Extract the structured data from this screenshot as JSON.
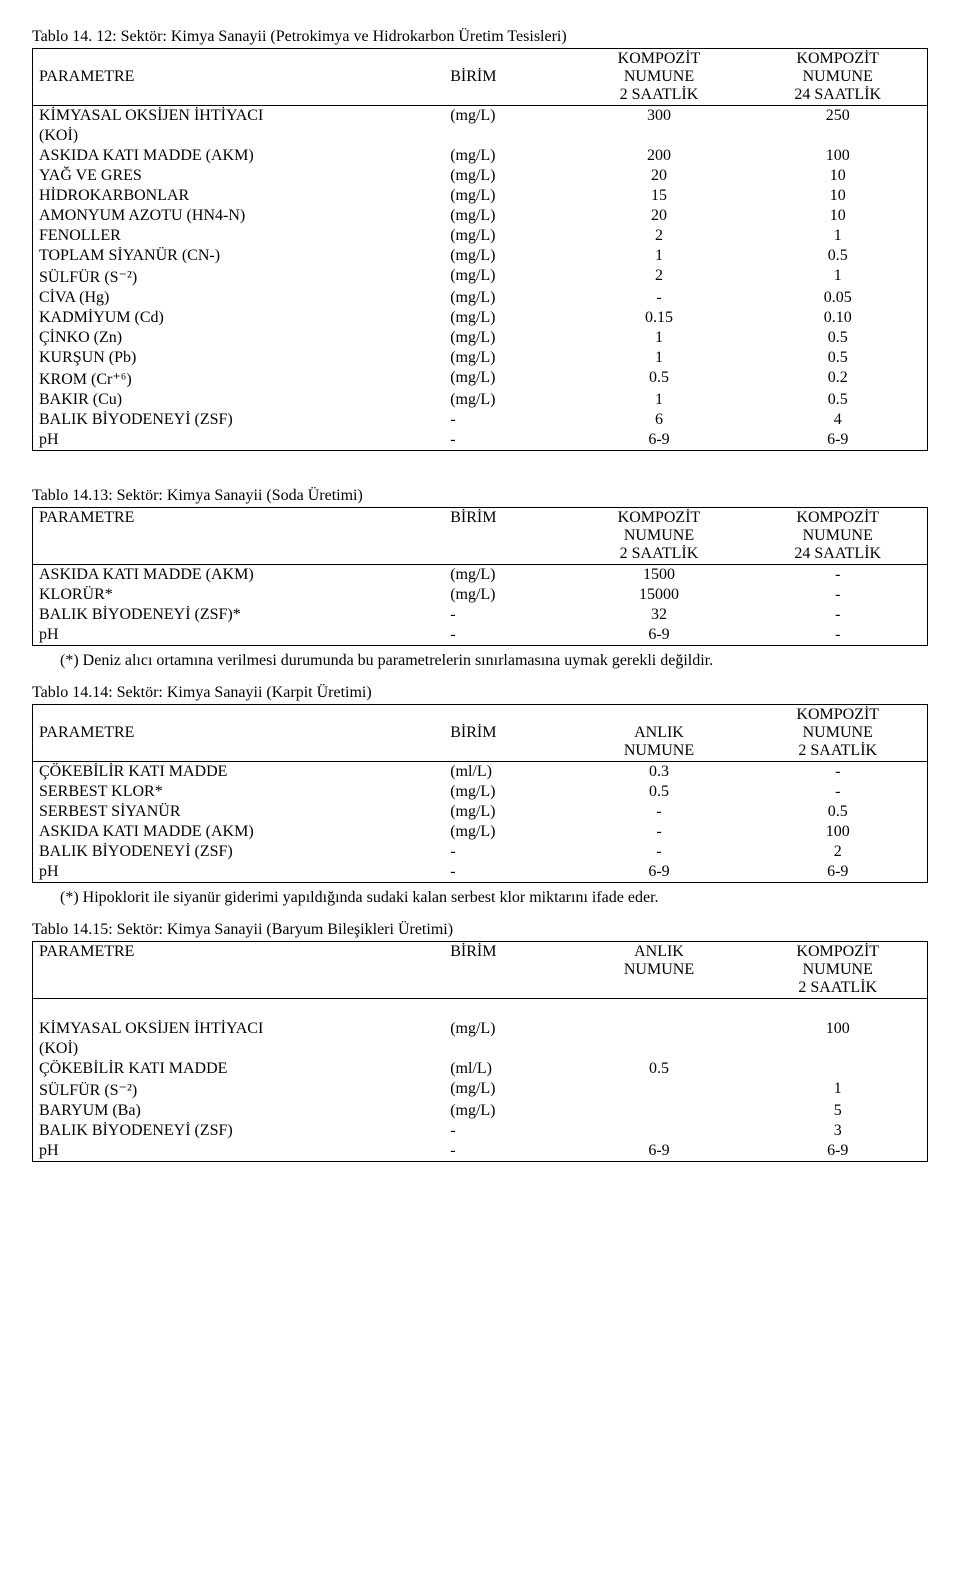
{
  "t12": {
    "caption": "Tablo 14. 12: Sektör: Kimya Sanayii  (Petrokimya  ve  Hidrokarbon Üretim Tesisleri)",
    "h_param": "PARAMETRE",
    "h_unit": "BİRİM",
    "h_c1a": "KOMPOZİT",
    "h_c1b": "NUMUNE",
    "h_c1c": "2 SAATLİK",
    "h_c2a": "KOMPOZİT",
    "h_c2b": "NUMUNE",
    "h_c2c": "24 SAATLİK",
    "rows": [
      {
        "p": "KİMYASAL   OKSİJEN    İHTİYACI",
        "u": "(mg/L)",
        "v1": "300",
        "v2": "250"
      },
      {
        "p": "(KOİ)",
        "u": "",
        "v1": "",
        "v2": ""
      },
      {
        "p": "ASKIDA KATI MADDE (AKM)",
        "u": "(mg/L)",
        "v1": "200",
        "v2": "100"
      },
      {
        "p": "YAĞ VE GRES",
        "u": "(mg/L)",
        "v1": "20",
        "v2": "10"
      },
      {
        "p": "HİDROKARBONLAR",
        "u": "(mg/L)",
        "v1": "15",
        "v2": "10"
      },
      {
        "p": "AMONYUM AZOTU (HN4-N)",
        "u": "(mg/L)",
        "v1": "20",
        "v2": "10"
      },
      {
        "p": "FENOLLER",
        "u": "(mg/L)",
        "v1": "2",
        "v2": "1"
      },
      {
        "p": "TOPLAM SİYANÜR (CN-)",
        "u": "(mg/L)",
        "v1": "1",
        "v2": "0.5"
      },
      {
        "p": "SÜLFÜR (S⁻²)",
        "u": "(mg/L)",
        "v1": "2",
        "v2": "1"
      },
      {
        "p": "CİVA (Hg)",
        "u": "(mg/L)",
        "v1": "-",
        "v2": "0.05"
      },
      {
        "p": "KADMİYUM (Cd)",
        "u": "(mg/L)",
        "v1": "0.15",
        "v2": "0.10"
      },
      {
        "p": "ÇİNKO (Zn)",
        "u": "(mg/L)",
        "v1": "1",
        "v2": "0.5"
      },
      {
        "p": "KURŞUN (Pb)",
        "u": "(mg/L)",
        "v1": "1",
        "v2": "0.5"
      },
      {
        "p": "KROM (Cr⁺⁶)",
        "u": "(mg/L)",
        "v1": "0.5",
        "v2": "0.2"
      },
      {
        "p": "BAKIR (Cu)",
        "u": "(mg/L)",
        "v1": "1",
        "v2": "0.5"
      },
      {
        "p": "BALIK BİYODENEYİ (ZSF)",
        "u": "-",
        "v1": "6",
        "v2": "4"
      },
      {
        "p": "pH",
        "u": "-",
        "v1": "6-9",
        "v2": "6-9"
      }
    ]
  },
  "t13": {
    "caption": "Tablo 14.13: Sektör: Kimya Sanayii (Soda Üretimi)",
    "h_param": "PARAMETRE",
    "h_unit": "BİRİM",
    "h_c1a": "KOMPOZİT",
    "h_c1b": "NUMUNE",
    "h_c1c": "2 SAATLİK",
    "h_c2a": "KOMPOZİT",
    "h_c2b": "NUMUNE",
    "h_c2c": "24 SAATLİK",
    "rows": [
      {
        "p": "ASKIDA KATI MADDE (AKM)",
        "u": "(mg/L)",
        "v1": "1500",
        "v2": "-"
      },
      {
        "p": "KLORÜR*",
        "u": "(mg/L)",
        "v1": "15000",
        "v2": "-"
      },
      {
        "p": "BALIK BİYODENEYİ (ZSF)*",
        "u": "-",
        "v1": "32",
        "v2": "-"
      },
      {
        "p": "pH",
        "u": "-",
        "v1": "6-9",
        "v2": "-"
      }
    ],
    "note": "(*) Deniz alıcı ortamına verilmesi durumunda bu parametrelerin sınırlamasına uymak gerekli değildir."
  },
  "t14": {
    "caption": "Tablo 14.14: Sektör: Kimya Sanayii (Karpit Üretimi)",
    "h_param": "PARAMETRE",
    "h_unit": "BİRİM",
    "h_c1a": "ANLIK",
    "h_c1b": "NUMUNE",
    "h_c2a": "KOMPOZİT",
    "h_c2b": "NUMUNE",
    "h_c2c": "2 SAATLİK",
    "rows": [
      {
        "p": "ÇÖKEBİLİR KATI MADDE",
        "u": "(ml/L)",
        "v1": "0.3",
        "v2": "-"
      },
      {
        "p": "SERBEST KLOR*",
        "u": "(mg/L)",
        "v1": "0.5",
        "v2": "-"
      },
      {
        "p": "SERBEST SİYANÜR",
        "u": "(mg/L)",
        "v1": "-",
        "v2": "0.5"
      },
      {
        "p": "ASKIDA KATI MADDE (AKM)",
        "u": "(mg/L)",
        "v1": "-",
        "v2": "100"
      },
      {
        "p": "BALIK BİYODENEYİ (ZSF)",
        "u": "-",
        "v1": "-",
        "v2": "2"
      },
      {
        "p": "pH",
        "u": "-",
        "v1": "6-9",
        "v2": "6-9"
      }
    ],
    "note": "(*) Hipoklorit ile siyanür giderimi yapıldığında sudaki kalan serbest klor miktarını ifade eder."
  },
  "t15": {
    "caption": "Tablo 14.15: Sektör: Kimya Sanayii (Baryum Bileşikleri Üretimi)",
    "h_param": "PARAMETRE",
    "h_unit": "BİRİM",
    "h_c1a": "ANLIK",
    "h_c1b": "NUMUNE",
    "h_c2a": "KOMPOZİT",
    "h_c2b": "NUMUNE",
    "h_c2c": "2 SAATLİK",
    "rows": [
      {
        "p": "KİMYASAL OKSİJEN İHTİYACI",
        "u": "(mg/L)",
        "v1": "",
        "v2": "100"
      },
      {
        "p": "(KOİ)",
        "u": "",
        "v1": "",
        "v2": ""
      },
      {
        "p": "ÇÖKEBİLİR KATI MADDE",
        "u": "(ml/L)",
        "v1": "0.5",
        "v2": ""
      },
      {
        "p": "SÜLFÜR (S⁻²)",
        "u": "(mg/L)",
        "v1": "",
        "v2": "1"
      },
      {
        "p": "BARYUM (Ba)",
        "u": "(mg/L)",
        "v1": "",
        "v2": "5"
      },
      {
        "p": "BALIK BİYODENEYİ (ZSF)",
        "u": "-",
        "v1": "",
        "v2": "3"
      },
      {
        "p": "pH",
        "u": "-",
        "v1": "6-9",
        "v2": "6-9"
      }
    ]
  }
}
